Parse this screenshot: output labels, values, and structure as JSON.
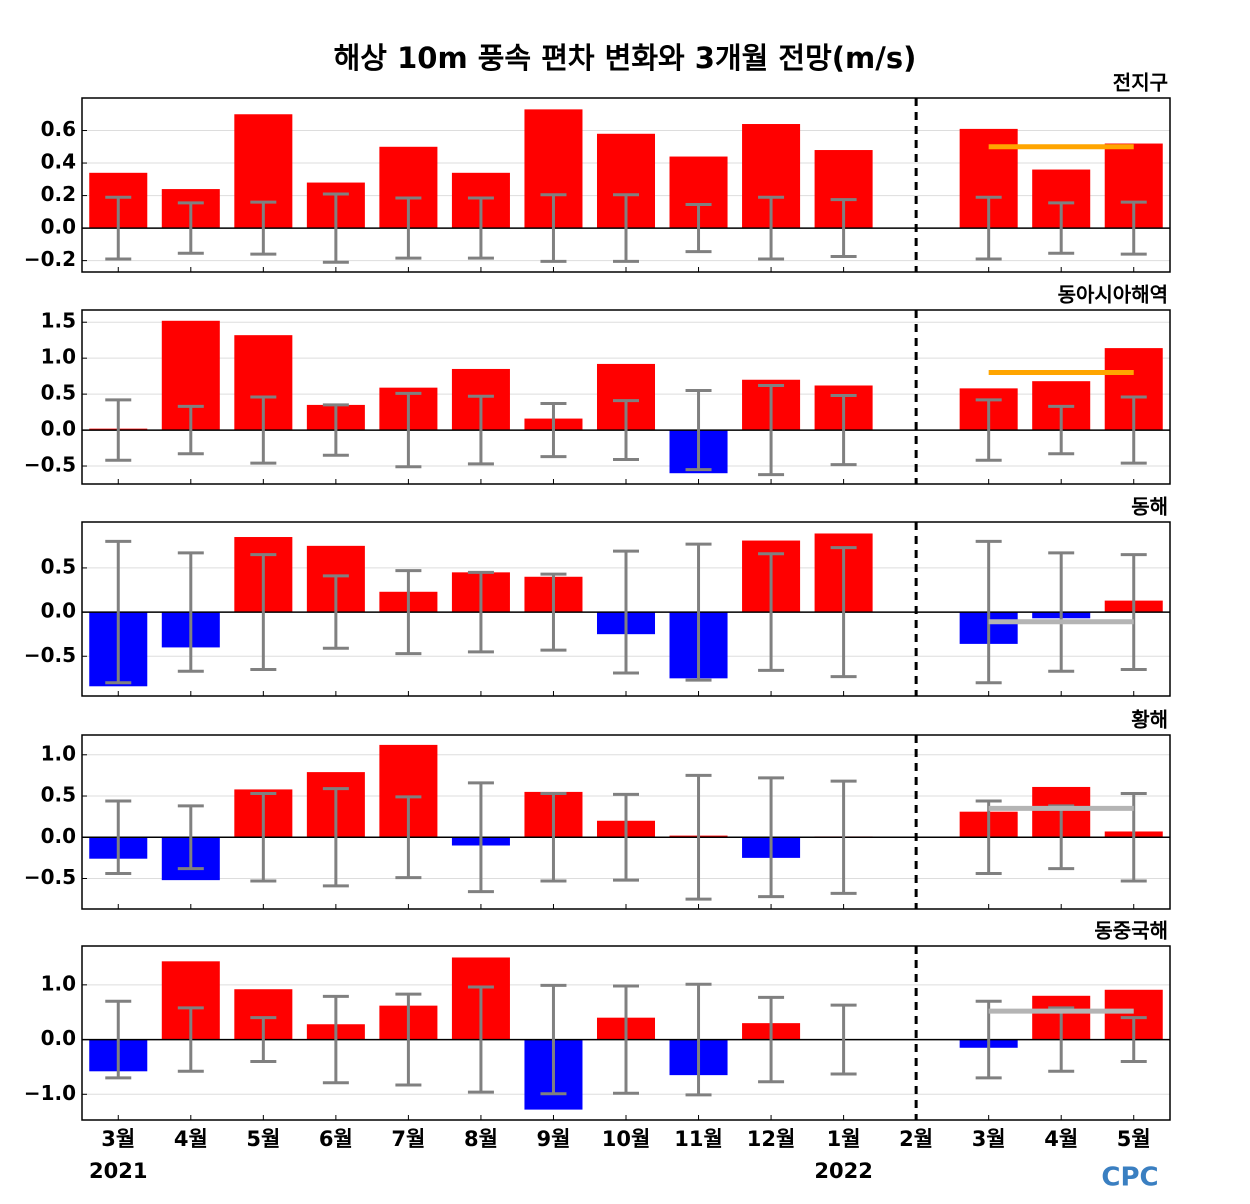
{
  "title": "해상 10m 풍속 편차 변화와 3개월 전망(m/s)",
  "logo": "CPC",
  "chart_data": [
    {
      "type": "bar",
      "title": "전지구",
      "pos_color": "#ff0000",
      "neg_color": "#0000ff",
      "error_color": "#808080",
      "values": [
        0.34,
        0.24,
        0.7,
        0.28,
        0.5,
        0.34,
        0.73,
        0.58,
        0.44,
        0.64,
        0.48,
        null,
        0.61,
        0.36,
        0.52
      ],
      "errors": [
        0.19,
        0.155,
        0.16,
        0.21,
        0.185,
        0.185,
        0.205,
        0.205,
        0.145,
        0.19,
        0.175,
        null,
        0.19,
        0.155,
        0.16
      ],
      "forecast": {
        "color": "#ffa500",
        "values": [
          null,
          null,
          null,
          null,
          null,
          null,
          null,
          null,
          null,
          null,
          null,
          null,
          0.5,
          0.5,
          0.5
        ]
      },
      "ylim": [
        -0.27,
        0.8
      ],
      "yticks": [
        {
          "value": -0.2,
          "label": "−0.2"
        },
        {
          "value": 0,
          "label": "0.0"
        },
        0.2,
        0.4,
        0.6
      ],
      "grid": true
    },
    {
      "type": "bar",
      "title": "동아시아해역",
      "pos_color": "#ff0000",
      "neg_color": "#0000ff",
      "error_color": "#808080",
      "values": [
        0.02,
        1.52,
        1.32,
        0.35,
        0.59,
        0.85,
        0.16,
        0.92,
        -0.6,
        0.7,
        0.62,
        null,
        0.58,
        0.68,
        1.14
      ],
      "errors": [
        0.42,
        0.33,
        0.46,
        0.35,
        0.51,
        0.47,
        0.37,
        0.41,
        0.55,
        0.62,
        0.48,
        null,
        0.42,
        0.33,
        0.46
      ],
      "forecast": {
        "color": "#ffa500",
        "values": [
          null,
          null,
          null,
          null,
          null,
          null,
          null,
          null,
          null,
          null,
          null,
          null,
          0.8,
          0.8,
          0.8
        ]
      },
      "ylim": [
        -0.75,
        1.67
      ],
      "yticks": [
        {
          "value": -0.5,
          "label": "−0.5"
        },
        {
          "value": 0,
          "label": "0.0"
        },
        0.5,
        {
          "value": 1,
          "label": "1.0"
        },
        1.5
      ],
      "grid": true
    },
    {
      "type": "bar",
      "title": "동해",
      "pos_color": "#ff0000",
      "neg_color": "#0000ff",
      "error_color": "#808080",
      "values": [
        -0.84,
        -0.4,
        0.85,
        0.75,
        0.23,
        0.45,
        0.4,
        -0.25,
        -0.75,
        0.81,
        0.89,
        null,
        -0.36,
        -0.07,
        0.13
      ],
      "errors": [
        0.8,
        0.67,
        0.65,
        0.41,
        0.47,
        0.45,
        0.43,
        0.69,
        0.77,
        0.66,
        0.73,
        null,
        0.8,
        0.67,
        0.65
      ],
      "forecast": {
        "color": "#b4b4b4",
        "values": [
          null,
          null,
          null,
          null,
          null,
          null,
          null,
          null,
          null,
          null,
          null,
          null,
          -0.11,
          -0.11,
          -0.11
        ]
      },
      "ylim": [
        -0.95,
        1.02
      ],
      "yticks": [
        {
          "value": -0.5,
          "label": "−0.5"
        },
        {
          "value": 0,
          "label": "0.0"
        },
        0.5
      ],
      "grid": true
    },
    {
      "type": "bar",
      "title": "황해",
      "pos_color": "#ff0000",
      "neg_color": "#0000ff",
      "error_color": "#808080",
      "values": [
        -0.26,
        -0.52,
        0.58,
        0.79,
        1.12,
        -0.1,
        0.55,
        0.2,
        0.02,
        -0.25,
        0.01,
        null,
        0.31,
        0.61,
        0.07
      ],
      "errors": [
        0.44,
        0.38,
        0.53,
        0.59,
        0.49,
        0.66,
        0.53,
        0.52,
        0.75,
        0.72,
        0.68,
        null,
        0.44,
        0.38,
        0.53
      ],
      "forecast": {
        "color": "#b4b4b4",
        "values": [
          null,
          null,
          null,
          null,
          null,
          null,
          null,
          null,
          null,
          null,
          null,
          null,
          0.35,
          0.35,
          0.35
        ]
      },
      "ylim": [
        -0.87,
        1.24
      ],
      "yticks": [
        {
          "value": -0.5,
          "label": "−0.5"
        },
        {
          "value": 0,
          "label": "0.0"
        },
        0.5,
        {
          "value": 1,
          "label": "1.0"
        }
      ],
      "grid": true
    },
    {
      "type": "bar",
      "title": "동중국해",
      "pos_color": "#ff0000",
      "neg_color": "#0000ff",
      "error_color": "#808080",
      "categories": [
        "3월",
        "4월",
        "5월",
        "6월",
        "7월",
        "8월",
        "9월",
        "10월",
        "11월",
        "12월",
        "1월",
        "2월",
        "3월",
        "4월",
        "5월"
      ],
      "x_sublabels": [
        "2021",
        null,
        null,
        null,
        null,
        null,
        null,
        null,
        null,
        null,
        "2022",
        null,
        null,
        null,
        null
      ],
      "values": [
        -0.58,
        1.43,
        0.92,
        0.28,
        0.62,
        1.5,
        -1.28,
        0.4,
        -0.65,
        0.3,
        0.01,
        null,
        -0.15,
        0.8,
        0.91
      ],
      "errors": [
        0.7,
        0.58,
        0.4,
        0.79,
        0.83,
        0.96,
        0.99,
        0.98,
        1.01,
        0.77,
        0.63,
        null,
        0.7,
        0.58,
        0.4
      ],
      "forecast": {
        "color": "#b4b4b4",
        "values": [
          null,
          null,
          null,
          null,
          null,
          null,
          null,
          null,
          null,
          null,
          null,
          null,
          0.52,
          0.52,
          0.52
        ]
      },
      "ylim": [
        -1.47,
        1.71
      ],
      "yticks": [
        {
          "value": -1,
          "label": "−1.0"
        },
        {
          "value": 0,
          "label": "0.0"
        },
        {
          "value": 1,
          "label": "1.0"
        }
      ],
      "grid": true
    }
  ]
}
